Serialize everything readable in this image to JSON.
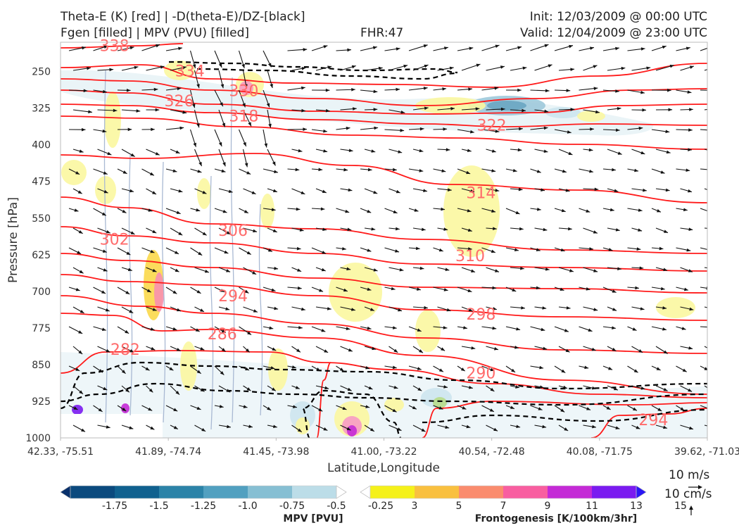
{
  "header": {
    "title_line1": "Theta-E (K) [red] | -D(theta-E)/DZ-[black]",
    "title_line2": "Fgen [filled] | MPV (PVU) [filled]",
    "fhr": "FHR:47",
    "init": "Init: 12/03/2009 @ 00:00 UTC",
    "valid": "Valid: 12/04/2009 @ 23:00 UTC"
  },
  "chart_data": {
    "type": "cross-section",
    "xlabel": "Latitude,Longitude",
    "ylabel": "Pressure [hPa]",
    "x_ticks": [
      "42.33, -75.51",
      "41.89, -74.74",
      "41.45, -73.98",
      "41.00, -73.22",
      "40.54, -72.48",
      "40.08, -71.75",
      "39.62, -71.03"
    ],
    "y_ticks": [
      250,
      325,
      400,
      475,
      550,
      625,
      700,
      775,
      850,
      925,
      1000
    ],
    "ylim": [
      1000,
      190
    ],
    "theta_e_contours": [
      {
        "label": "338",
        "lx": 0.5,
        "lp": 198
      },
      {
        "label": "334",
        "lx": 1.2,
        "lp": 250
      },
      {
        "label": "330",
        "lx": 1.7,
        "lp": 290
      },
      {
        "label": "326",
        "lx": 1.1,
        "lp": 311
      },
      {
        "label": "322",
        "lx": 4.0,
        "lp": 361
      },
      {
        "label": "318",
        "lx": 1.7,
        "lp": 342
      },
      {
        "label": "314",
        "lx": 3.9,
        "lp": 499
      },
      {
        "label": "310",
        "lx": 3.8,
        "lp": 628
      },
      {
        "label": "306",
        "lx": 1.6,
        "lp": 576
      },
      {
        "label": "302",
        "lx": 0.5,
        "lp": 594
      },
      {
        "label": "298",
        "lx": 3.9,
        "lp": 748
      },
      {
        "label": "294",
        "lx": 1.6,
        "lp": 710
      },
      {
        "label": "290",
        "lx": 3.9,
        "lp": 868
      },
      {
        "label": "286",
        "lx": 1.5,
        "lp": 788
      },
      {
        "label": "282",
        "lx": 0.6,
        "lp": 820
      },
      {
        "label": "294",
        "lx": 5.5,
        "lp": 964
      }
    ],
    "vector_key": {
      "horizontal": "10 m/s",
      "vertical": "10 cm/s"
    }
  },
  "colorbars": {
    "mpv": {
      "label": "MPV [PVU]",
      "ticks": [
        "-1.75",
        "-1.5",
        "-1.25",
        "-1.0",
        "-0.75",
        "-0.5",
        "-0.25"
      ],
      "colors": [
        "#08306b",
        "#0b4a7e",
        "#10618f",
        "#2b83a8",
        "#51a0c0",
        "#86bfd3",
        "#bcdde8",
        "#ffffff"
      ]
    },
    "fgen": {
      "label": "Frontogenesis [K/100km/3hr]",
      "ticks": [
        "3",
        "5",
        "7",
        "9",
        "11",
        "13",
        "15"
      ],
      "colors": [
        "#ffffff",
        "#f5f11a",
        "#f9c03f",
        "#fa8c6e",
        "#f85ea0",
        "#c42ad6",
        "#7a1bf0",
        "#2a16f5"
      ]
    }
  }
}
